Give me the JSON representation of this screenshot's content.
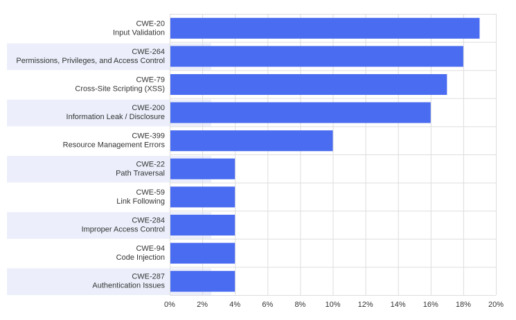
{
  "chart_data": {
    "type": "bar",
    "orientation": "horizontal",
    "categories": [
      {
        "code": "CWE-20",
        "name": "Input Validation"
      },
      {
        "code": "CWE-264",
        "name": "Permissions, Privileges, and Access Control"
      },
      {
        "code": "CWE-79",
        "name": "Cross-Site Scripting (XSS)"
      },
      {
        "code": "CWE-200",
        "name": "Information Leak / Disclosure"
      },
      {
        "code": "CWE-399",
        "name": "Resource Management Errors"
      },
      {
        "code": "CWE-22",
        "name": "Path Traversal"
      },
      {
        "code": "CWE-59",
        "name": "Link Following"
      },
      {
        "code": "CWE-284",
        "name": "Improper Access Control"
      },
      {
        "code": "CWE-94",
        "name": "Code Injection"
      },
      {
        "code": "CWE-287",
        "name": "Authentication Issues"
      }
    ],
    "values": [
      19,
      18,
      17,
      16,
      10,
      4,
      4,
      4,
      4,
      4
    ],
    "xlim": [
      0,
      20
    ],
    "xticks": [
      0,
      2,
      4,
      6,
      8,
      10,
      12,
      14,
      16,
      18,
      20
    ],
    "xtick_labels": [
      "0%",
      "2%",
      "4%",
      "6%",
      "8%",
      "10%",
      "12%",
      "14%",
      "16%",
      "18%",
      "20%"
    ],
    "title": "",
    "xlabel": "",
    "ylabel": "",
    "grid": "vertical",
    "colors": {
      "bar": "#4a6cf0",
      "band": "#eceffb",
      "grid": "#dddddd"
    }
  }
}
